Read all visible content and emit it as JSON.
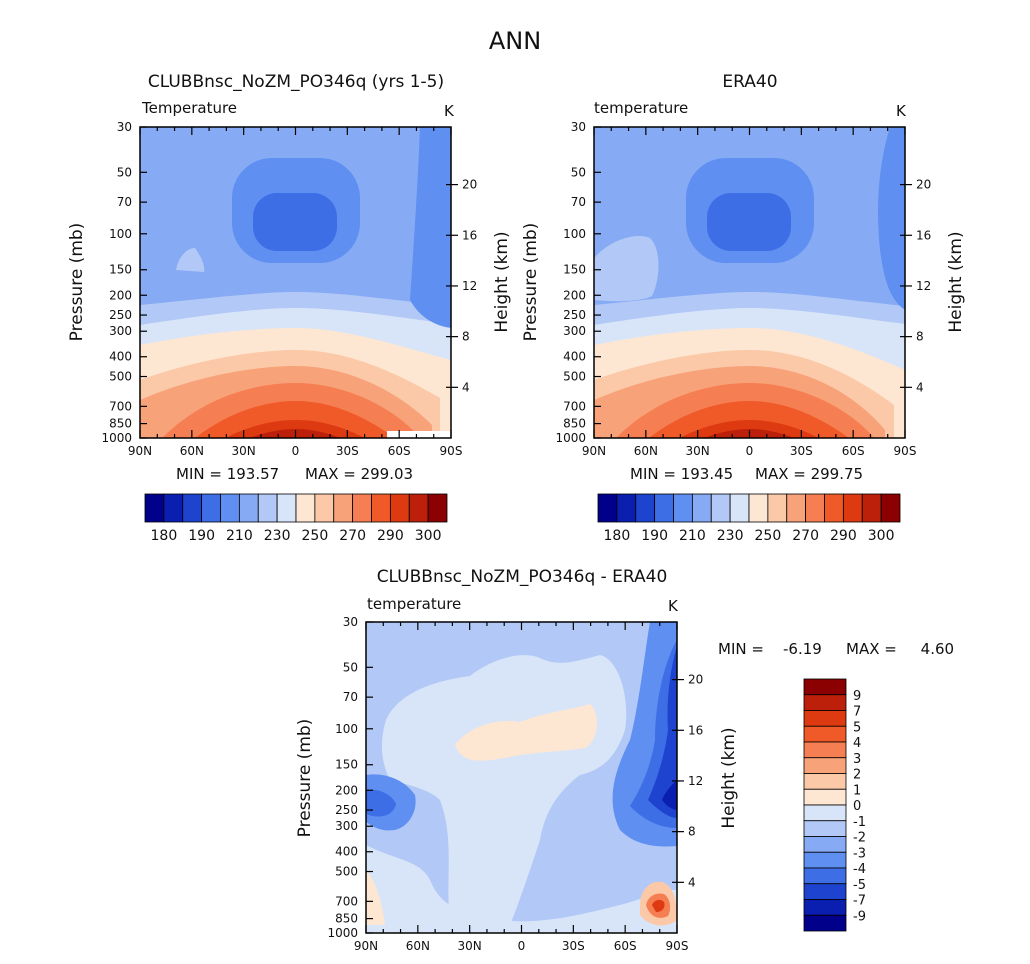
{
  "figure": {
    "suptitle": "ANN"
  },
  "chart_data": [
    {
      "type": "heatmap",
      "id": "model",
      "title": "CLUBBnsc_NoZM_PO346q (yrs 1-5)",
      "variable_label": "Temperature",
      "units": "K",
      "xlabel": "",
      "ylabel": "Pressure (mb)",
      "y2label": "Height (km)",
      "x_ticks": [
        "90N",
        "60N",
        "30N",
        "0",
        "30S",
        "60S",
        "90S"
      ],
      "y_ticks": [
        30,
        50,
        70,
        100,
        150,
        200,
        250,
        300,
        400,
        500,
        700,
        850,
        1000
      ],
      "y2_ticks": [
        4,
        8,
        12,
        16,
        20
      ],
      "ylim": [
        1000,
        30
      ],
      "log_y": true,
      "min_text": "MIN = 193.57",
      "max_text": "MAX = 299.03",
      "min": 193.57,
      "max": 299.03,
      "colorbar_labels": [
        "180",
        "190",
        "210",
        "230",
        "250",
        "270",
        "290",
        "300"
      ]
    },
    {
      "type": "heatmap",
      "id": "obs",
      "title": "ERA40",
      "variable_label": "temperature",
      "units": "K",
      "xlabel": "",
      "ylabel": "Pressure (mb)",
      "y2label": "Height (km)",
      "x_ticks": [
        "90N",
        "60N",
        "30N",
        "0",
        "30S",
        "60S",
        "90S"
      ],
      "y_ticks": [
        30,
        50,
        70,
        100,
        150,
        200,
        250,
        300,
        400,
        500,
        700,
        850,
        1000
      ],
      "y2_ticks": [
        4,
        8,
        12,
        16,
        20
      ],
      "ylim": [
        1000,
        30
      ],
      "log_y": true,
      "min_text": "MIN = 193.45",
      "max_text": "MAX = 299.75",
      "min": 193.45,
      "max": 299.75,
      "colorbar_labels": [
        "180",
        "190",
        "210",
        "230",
        "250",
        "270",
        "290",
        "300"
      ]
    },
    {
      "type": "heatmap",
      "id": "diff",
      "title": "CLUBBnsc_NoZM_PO346q - ERA40",
      "variable_label": "temperature",
      "units": "K",
      "xlabel": "",
      "ylabel": "Pressure (mb)",
      "y2label": "Height (km)",
      "x_ticks": [
        "90N",
        "60N",
        "30N",
        "0",
        "30S",
        "60S",
        "90S"
      ],
      "y_ticks": [
        30,
        50,
        70,
        100,
        150,
        200,
        250,
        300,
        400,
        500,
        700,
        850,
        1000
      ],
      "y2_ticks": [
        4,
        8,
        12,
        16,
        20
      ],
      "ylim": [
        1000,
        30
      ],
      "log_y": true,
      "min_text": "MIN =    -6.19",
      "max_text": "MAX =     4.60",
      "min": -6.19,
      "max": 4.6,
      "colorbar_labels": [
        "9",
        "7",
        "5",
        "4",
        "3",
        "2",
        "1",
        "0",
        "-1",
        "-2",
        "-3",
        "-4",
        "-5",
        "-7",
        "-9"
      ]
    }
  ],
  "palettes": {
    "absolute": [
      "#00008b",
      "#0a1fb0",
      "#1e44cf",
      "#3d6ee6",
      "#5f8ff0",
      "#86abf4",
      "#b2c8f6",
      "#d8e5f8",
      "#fde6d2",
      "#fbc9a8",
      "#f8a27a",
      "#f57e52",
      "#f05a28",
      "#dd3a12",
      "#bd200a",
      "#8b0000"
    ],
    "difference": [
      "#8b0000",
      "#bd200a",
      "#dd3a12",
      "#f05a28",
      "#f57e52",
      "#f8a27a",
      "#fbc9a8",
      "#fde6d2",
      "#d8e5f8",
      "#b2c8f6",
      "#86abf4",
      "#5f8ff0",
      "#3d6ee6",
      "#1e44cf",
      "#0a1fb0",
      "#00008b"
    ]
  }
}
